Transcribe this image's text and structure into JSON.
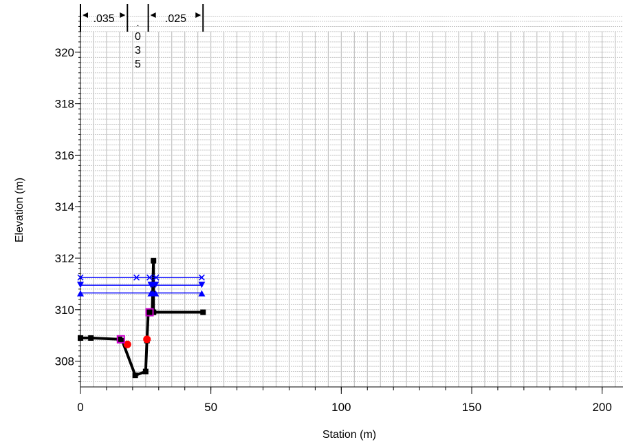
{
  "chart_data": {
    "type": "line",
    "xlabel": "Station (m)",
    "ylabel": "Elevation (m)",
    "xlim": [
      0,
      208
    ],
    "ylim": [
      307.0,
      321.6
    ],
    "xticks": [
      0,
      50,
      100,
      150,
      200
    ],
    "yticks": [
      308,
      310,
      312,
      314,
      316,
      318,
      320
    ],
    "grid": true,
    "manning_n": [
      {
        "label": ".035",
        "x_start": 0,
        "x_end": 18
      },
      {
        "label": ".035",
        "vertical": [
          ".",
          "0",
          "3",
          "5"
        ]
      },
      {
        "label": ".025",
        "x_start": 26,
        "x_end": 47
      }
    ],
    "series": [
      {
        "type": "ground",
        "color": "#000000",
        "x": [
          0,
          4,
          15,
          16,
          21,
          25,
          25.5,
          26,
          27.5,
          28,
          28,
          28,
          47
        ],
        "y": [
          308.9,
          308.9,
          308.85,
          308.8,
          307.45,
          307.6,
          308.8,
          309.9,
          309.9,
          311.9,
          309.9,
          309.9,
          309.9
        ]
      },
      {
        "type": "points",
        "color": "#ff0000",
        "x": [
          18,
          25.5
        ],
        "y": [
          308.65,
          308.85
        ]
      },
      {
        "type": "points",
        "color": "#cc00cc",
        "x": [
          15.5,
          26.5
        ],
        "y": [
          308.85,
          309.9
        ]
      },
      {
        "type": "level",
        "color": "#0000ff",
        "marker": "x",
        "x": [
          0,
          21.5,
          26.5,
          29,
          46.5
        ],
        "y": [
          311.25,
          311.25,
          311.25,
          311.25,
          311.25
        ]
      },
      {
        "type": "level",
        "color": "#0000ff",
        "marker": "tri-down",
        "x": [
          0,
          27,
          27.8,
          28.8,
          46.5
        ],
        "y": [
          310.95,
          310.95,
          310.95,
          310.95,
          310.95
        ]
      },
      {
        "type": "level",
        "color": "#0000ff",
        "marker": "tri-up",
        "x": [
          0,
          27,
          27.8,
          28.8,
          46.5
        ],
        "y": [
          310.65,
          310.65,
          310.65,
          310.65,
          310.65
        ]
      }
    ]
  }
}
